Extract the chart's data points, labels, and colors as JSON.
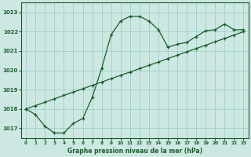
{
  "title": "Graphe pression niveau de la mer (hPa)",
  "bg_color": "#cde8e2",
  "grid_color": "#9ecfc7",
  "line_color": "#1a5c2a",
  "xlim": [
    -0.5,
    23.5
  ],
  "ylim": [
    1016.5,
    1023.5
  ],
  "yticks": [
    1017,
    1018,
    1019,
    1020,
    1021,
    1022,
    1023
  ],
  "xticks": [
    0,
    1,
    2,
    3,
    4,
    5,
    6,
    7,
    8,
    9,
    10,
    11,
    12,
    13,
    14,
    15,
    16,
    17,
    18,
    19,
    20,
    21,
    22,
    23
  ],
  "series1_x": [
    0,
    1,
    2,
    3,
    4,
    5,
    6,
    7,
    8,
    9,
    10,
    11,
    12,
    13,
    14,
    15,
    16,
    17,
    18,
    19,
    20,
    21,
    22,
    23
  ],
  "series1_y": [
    1018.0,
    1017.7,
    1017.1,
    1016.75,
    1016.75,
    1017.25,
    1017.5,
    1018.6,
    1020.1,
    1021.85,
    1022.55,
    1022.8,
    1022.8,
    1022.55,
    1022.1,
    1021.2,
    1021.35,
    1021.45,
    1021.75,
    1022.05,
    1022.1,
    1022.4,
    1022.1,
    1022.1
  ],
  "series2_x": [
    0,
    1,
    2,
    3,
    4,
    5,
    6,
    7,
    8,
    9,
    10,
    11,
    12,
    13,
    14,
    15,
    16,
    17,
    18,
    19,
    20,
    21,
    22,
    23
  ],
  "series2_y": [
    1018.0,
    1018.17,
    1018.35,
    1018.52,
    1018.7,
    1018.87,
    1019.04,
    1019.22,
    1019.39,
    1019.57,
    1019.74,
    1019.91,
    1020.09,
    1020.26,
    1020.43,
    1020.61,
    1020.78,
    1020.96,
    1021.13,
    1021.3,
    1021.48,
    1021.65,
    1021.83,
    1022.0
  ]
}
